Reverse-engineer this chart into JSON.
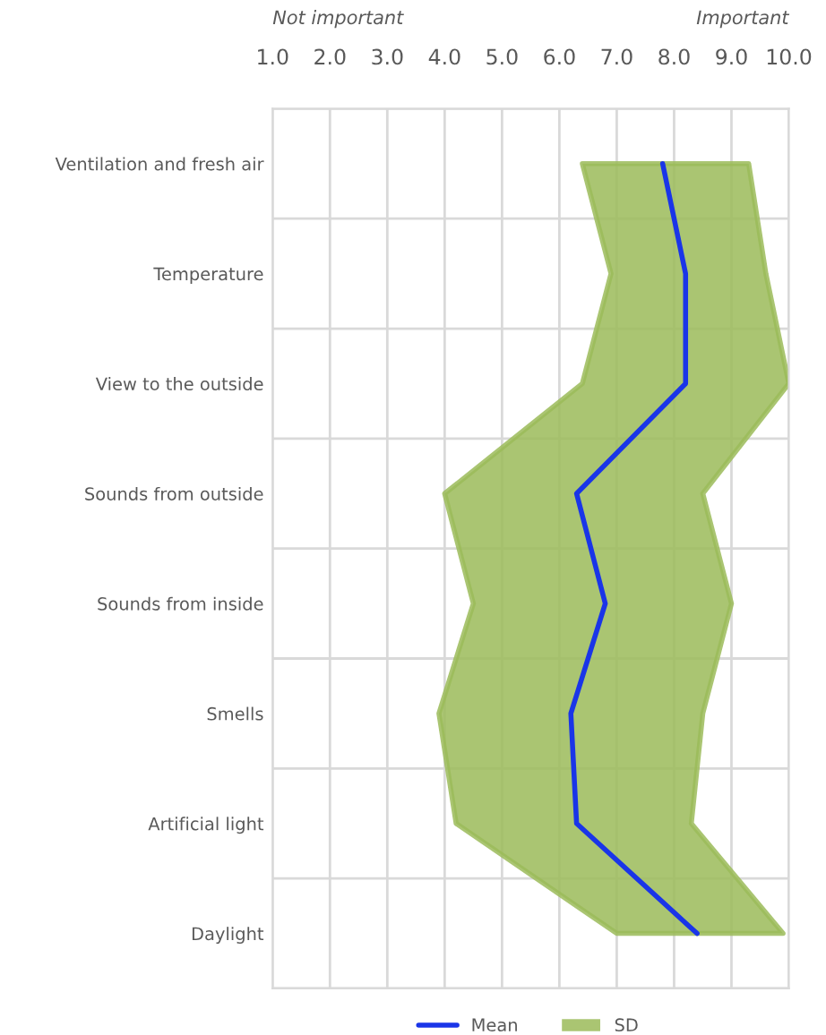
{
  "chart_data": {
    "type": "line",
    "orientation": "horizontal",
    "categories": [
      "Ventilation and fresh air",
      "Temperature",
      "View to the outside",
      "Sounds from outside",
      "Sounds from inside",
      "Smells",
      "Artificial light",
      "Daylight"
    ],
    "series": [
      {
        "name": "Mean",
        "color": "#1a35e8",
        "values": [
          7.8,
          8.2,
          8.2,
          6.3,
          6.8,
          6.2,
          6.3,
          8.4
        ]
      },
      {
        "name": "SD",
        "type": "area",
        "color": "#9bbb59",
        "values": [
          null,
          null,
          null,
          null,
          null,
          null,
          null,
          null
        ],
        "lower": [
          6.4,
          6.9,
          6.4,
          4.0,
          4.5,
          3.9,
          4.2,
          7.0
        ],
        "upper": [
          9.3,
          9.6,
          10.0,
          8.5,
          9.0,
          8.5,
          8.3,
          9.9
        ]
      }
    ],
    "xlim": [
      1,
      10
    ],
    "xticks": [
      {
        "value": 1,
        "label": "1.0"
      },
      {
        "value": 2,
        "label": "2.0"
      },
      {
        "value": 3,
        "label": "3.0"
      },
      {
        "value": 4,
        "label": "4.0"
      },
      {
        "value": 5,
        "label": "5.0"
      },
      {
        "value": 6,
        "label": "6.0"
      },
      {
        "value": 7,
        "label": "7.0"
      },
      {
        "value": 8,
        "label": "8.0"
      },
      {
        "value": 9,
        "label": "9.0"
      },
      {
        "value": 10,
        "label": "10.0"
      }
    ],
    "annotations": [
      "Not important",
      "Important"
    ],
    "grid": true,
    "legend": "bottom"
  }
}
